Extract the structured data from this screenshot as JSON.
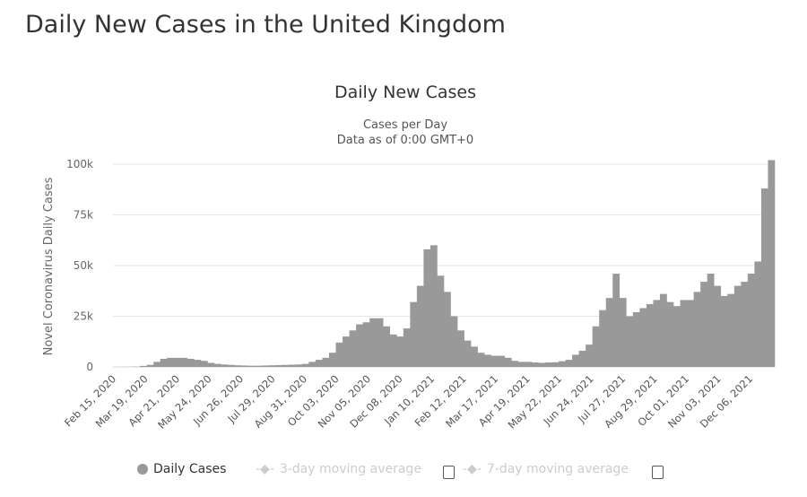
{
  "page": {
    "title": "Daily New Cases in the United Kingdom"
  },
  "chart_data": {
    "type": "bar",
    "title": "Daily New Cases",
    "subtitle": [
      "Cases per Day",
      "Data as of 0:00 GMT+0"
    ],
    "ylabel": "Novel Coronavirus Daily Cases",
    "xlabel": "",
    "ylim": [
      0,
      100000
    ],
    "yticks": [
      0,
      25000,
      50000,
      75000,
      100000
    ],
    "ytick_labels": [
      "0",
      "25k",
      "50k",
      "75k",
      "100k"
    ],
    "xtick_labels": [
      "Feb 15, 2020",
      "Mar 19, 2020",
      "Apr 21, 2020",
      "May 24, 2020",
      "Jun 26, 2020",
      "Jul 29, 2020",
      "Aug 31, 2020",
      "Oct 03, 2020",
      "Nov 05, 2020",
      "Dec 08, 2020",
      "Jan 10, 2021",
      "Feb 12, 2021",
      "Mar 17, 2021",
      "Apr 19, 2021",
      "May 22, 2021",
      "Jun 24, 2021",
      "Jul 27, 2021",
      "Aug 29, 2021",
      "Oct 01, 2021",
      "Nov 03, 2021",
      "Dec 06, 2021"
    ],
    "xtick_dates": [
      "2020-02-15",
      "2020-03-19",
      "2020-04-21",
      "2020-05-24",
      "2020-06-26",
      "2020-07-29",
      "2020-08-31",
      "2020-10-03",
      "2020-11-05",
      "2020-12-08",
      "2021-01-10",
      "2021-02-12",
      "2021-03-17",
      "2021-04-19",
      "2021-05-22",
      "2021-06-24",
      "2021-07-27",
      "2021-08-29",
      "2021-10-01",
      "2021-11-03",
      "2021-12-06"
    ],
    "grid": true,
    "legend_position": "bottom",
    "series": [
      {
        "name": "Daily Cases",
        "color": "#999999",
        "start_date": "2020-02-15",
        "interval_days": 7,
        "values": [
          0,
          0,
          30,
          100,
          500,
          1000,
          2500,
          4000,
          4500,
          4500,
          4500,
          4000,
          3500,
          3000,
          2000,
          1500,
          1200,
          1000,
          800,
          700,
          600,
          600,
          700,
          800,
          900,
          1000,
          1100,
          1200,
          1500,
          2500,
          3500,
          4500,
          7000,
          12000,
          15000,
          18000,
          21000,
          22000,
          24000,
          24000,
          20000,
          16000,
          15000,
          19000,
          32000,
          40000,
          58000,
          60000,
          45000,
          37000,
          25000,
          18000,
          13000,
          10000,
          7000,
          6000,
          5500,
          5500,
          4500,
          3000,
          2500,
          2500,
          2200,
          2000,
          2200,
          2300,
          2800,
          3500,
          6000,
          8000,
          11000,
          20000,
          28000,
          34000,
          46000,
          34000,
          25000,
          27000,
          29000,
          31000,
          33000,
          36000,
          32000,
          30000,
          33000,
          33000,
          37000,
          42000,
          46000,
          40000,
          35000,
          36000,
          40000,
          42000,
          46000,
          52000,
          88000,
          102000
        ]
      }
    ],
    "legend": [
      {
        "label": "Daily Cases",
        "active": true
      },
      {
        "label": "3-day moving average",
        "active": false
      },
      {
        "label": "7-day moving average",
        "active": false
      }
    ]
  }
}
